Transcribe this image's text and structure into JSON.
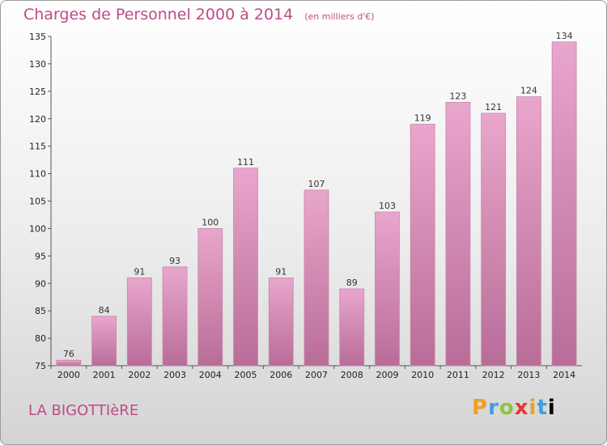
{
  "title": "Charges de Personnel 2000 à 2014",
  "unit": "(en milliers d'€)",
  "commune": "LA BIGOTTIèRE",
  "logo": "Proxiti",
  "colors": {
    "bar": "#d98cb6",
    "title": "#c04a86"
  },
  "chart_data": {
    "type": "bar",
    "categories": [
      "2000",
      "2001",
      "2002",
      "2003",
      "2004",
      "2005",
      "2006",
      "2007",
      "2008",
      "2009",
      "2010",
      "2011",
      "2012",
      "2013",
      "2014"
    ],
    "values": [
      76,
      84,
      91,
      93,
      100,
      111,
      91,
      107,
      89,
      103,
      119,
      123,
      121,
      124,
      134
    ],
    "ylim": [
      75,
      135
    ],
    "yticks": [
      75,
      80,
      85,
      90,
      95,
      100,
      105,
      110,
      115,
      120,
      125,
      130,
      135
    ],
    "grid": false,
    "data_labels": true
  }
}
